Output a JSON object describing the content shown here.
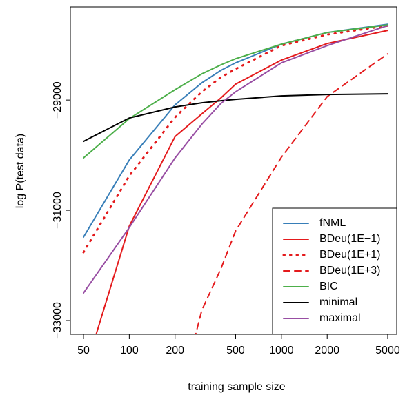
{
  "chart_data": {
    "type": "line",
    "xlabel": "training sample size",
    "ylabel": "log P(test data)",
    "xscale": "log",
    "x": [
      50,
      100,
      200,
      300,
      400,
      500,
      1000,
      2000,
      5000
    ],
    "xlim": [
      41,
      5730
    ],
    "xticks": [
      50,
      100,
      200,
      500,
      1000,
      2000,
      5000
    ],
    "ylim": [
      -33250,
      -27310
    ],
    "yticks": [
      {
        "value": -33000,
        "label": "−33000"
      },
      {
        "value": -31000,
        "label": "−31000"
      },
      {
        "value": -29000,
        "label": "−29000"
      }
    ],
    "legend": "lower right",
    "series": [
      {
        "name": "fNML",
        "color": "#377eb8",
        "linestyle": "solid",
        "values": [
          -31487,
          -30087,
          -29087,
          -28687,
          -28462,
          -28325,
          -27987,
          -27775,
          -27625
        ]
      },
      {
        "name": "BDeu(1E−1)",
        "color": "#e41a1c",
        "linestyle": "solid",
        "values": [
          -34000,
          -31287,
          -29662,
          -29250,
          -28962,
          -28712,
          -28275,
          -27975,
          -27737
        ]
      },
      {
        "name": "BDeu(1E+1)",
        "color": "#e41a1c",
        "linestyle": "dotted",
        "values": [
          -31762,
          -30375,
          -29312,
          -28850,
          -28587,
          -28437,
          -28012,
          -27812,
          -27650
        ]
      },
      {
        "name": "BDeu(1E+3)",
        "color": "#e41a1c",
        "linestyle": "dashed",
        "values": [
          null,
          null,
          -34700,
          -32812,
          -32062,
          -31375,
          -30037,
          -28937,
          -28162
        ]
      },
      {
        "name": "BIC",
        "color": "#4daf4a",
        "linestyle": "solid",
        "values": [
          -30050,
          -29337,
          -28812,
          -28525,
          -28362,
          -28250,
          -27987,
          -27775,
          -27637
        ]
      },
      {
        "name": "minimal",
        "color": "#000000",
        "linestyle": "solid",
        "values": [
          -29750,
          -29325,
          -29125,
          -29050,
          -29012,
          -28987,
          -28925,
          -28900,
          -28887
        ]
      },
      {
        "name": "maximal",
        "color": "#984ea3",
        "linestyle": "solid",
        "values": [
          -32500,
          -31312,
          -30050,
          -29437,
          -29062,
          -28850,
          -28325,
          -28012,
          -27650
        ]
      }
    ]
  }
}
